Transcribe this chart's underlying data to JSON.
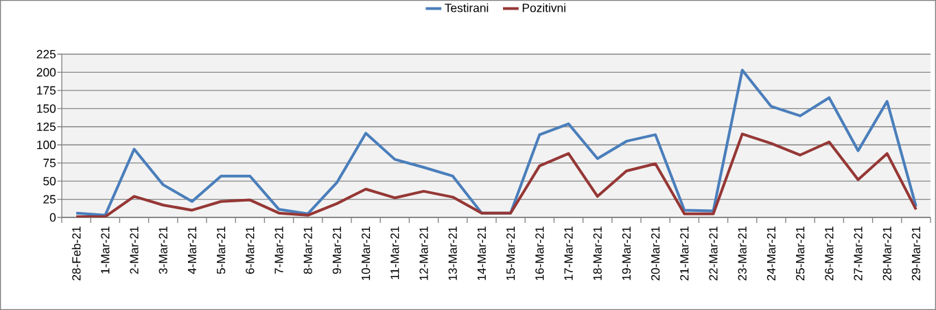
{
  "chart_data": {
    "type": "line",
    "categories": [
      "28-Feb-21",
      "1-Mar-21",
      "2-Mar-21",
      "3-Mar-21",
      "4-Mar-21",
      "5-Mar-21",
      "6-Mar-21",
      "7-Mar-21",
      "8-Mar-21",
      "9-Mar-21",
      "10-Mar-21",
      "11-Mar-21",
      "12-Mar-21",
      "13-Mar-21",
      "14-Mar-21",
      "15-Mar-21",
      "16-Mar-21",
      "17-Mar-21",
      "18-Mar-21",
      "19-Mar-21",
      "20-Mar-21",
      "21-Mar-21",
      "22-Mar-21",
      "23-Mar-21",
      "24-Mar-21",
      "25-Mar-21",
      "26-Mar-21",
      "27-Mar-21",
      "28-Mar-21",
      "29-Mar-21"
    ],
    "series": [
      {
        "name": "Testirani",
        "color": "#4a7ebb",
        "values": [
          6,
          3,
          94,
          45,
          22,
          57,
          57,
          11,
          5,
          48,
          116,
          80,
          69,
          57,
          6,
          6,
          114,
          129,
          81,
          105,
          114,
          10,
          9,
          203,
          153,
          140,
          165,
          92,
          160,
          15
        ]
      },
      {
        "name": "Pozitivni",
        "color": "#953735",
        "values": [
          1,
          1,
          29,
          17,
          10,
          22,
          24,
          6,
          3,
          19,
          39,
          27,
          36,
          28,
          6,
          6,
          71,
          88,
          29,
          64,
          74,
          5,
          5,
          115,
          102,
          86,
          104,
          52,
          88,
          11
        ]
      }
    ],
    "ylim": [
      0,
      225
    ],
    "yticks": [
      0,
      25,
      50,
      75,
      100,
      125,
      150,
      175,
      200,
      225
    ],
    "grid": "y",
    "legend": "top",
    "marker": "none",
    "line_style": "solid"
  }
}
